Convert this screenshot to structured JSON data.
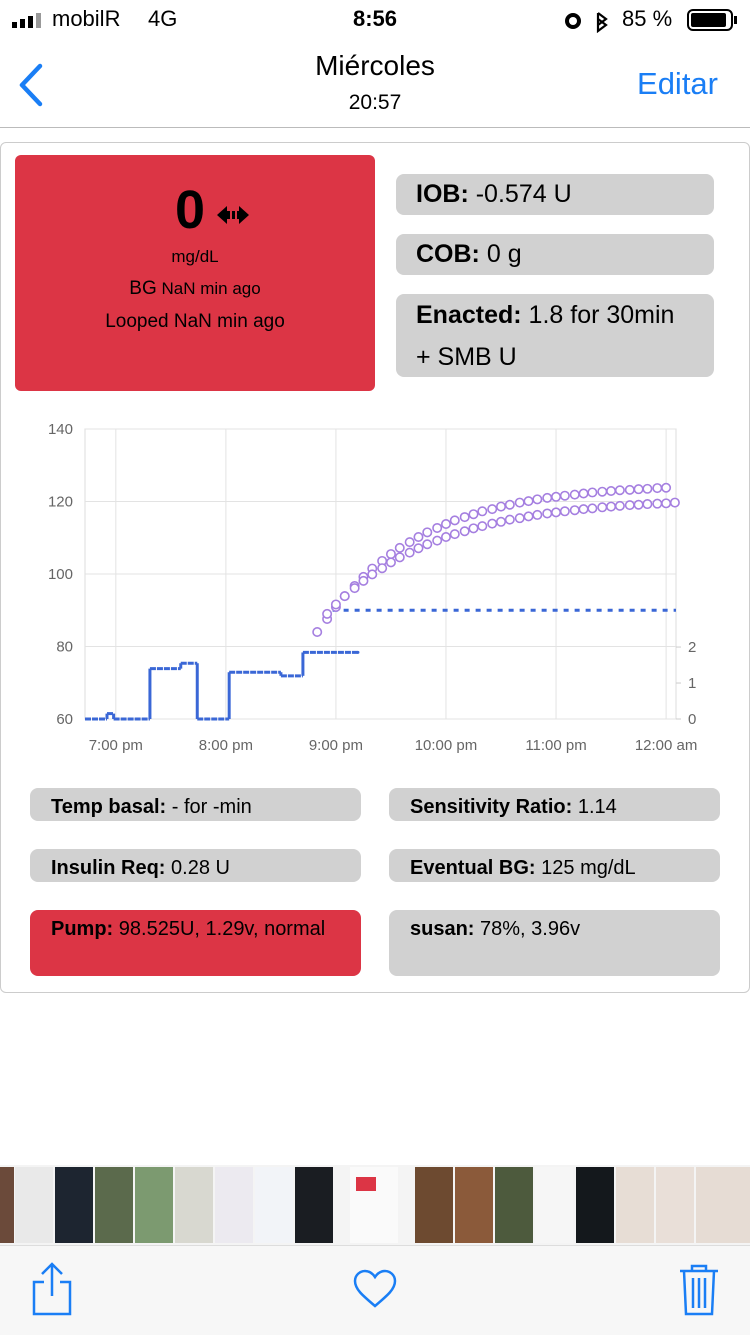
{
  "status_bar": {
    "carrier": "mobilR",
    "network": "4G",
    "time": "8:56",
    "battery": "85 %"
  },
  "nav": {
    "title": "Miércoles",
    "subtitle": "20:57",
    "action": "Editar"
  },
  "summary": {
    "bg": "0",
    "unit": "mg/dL",
    "bg_label": "BG",
    "bg_age": "NaN min ago",
    "looped": "Looped NaN min ago"
  },
  "pills": [
    {
      "label": "IOB:",
      "value": "-0.574 U"
    },
    {
      "label": "COB:",
      "value": "0 g"
    },
    {
      "label": "Enacted:",
      "value": "1.8 for 30min + SMB U"
    }
  ],
  "chart_data": {
    "type": "line",
    "xlim": [
      18.72,
      24.09
    ],
    "xticks": [
      {
        "value": 19,
        "label": "7:00 pm"
      },
      {
        "value": 20,
        "label": "8:00 pm"
      },
      {
        "value": 21,
        "label": "9:00 pm"
      },
      {
        "value": 22,
        "label": "10:00 pm"
      },
      {
        "value": 23,
        "label": "11:00 pm"
      },
      {
        "value": 24,
        "label": "12:00 am"
      }
    ],
    "ylim": [
      60,
      140
    ],
    "yticks": [
      60,
      80,
      100,
      120,
      140
    ],
    "y2lim": [
      0,
      8.06
    ],
    "y2ticks": [
      0,
      1,
      2
    ],
    "grid": true,
    "series": [
      {
        "style": "step",
        "axis": "y2",
        "color": "#3a67d6",
        "x": [
          18.72,
          18.92,
          18.98,
          19.31,
          19.59,
          19.74,
          20.03,
          20.5,
          20.7,
          21.2
        ],
        "values": [
          0,
          0.15,
          0,
          1.4,
          1.55,
          0,
          1.3,
          1.2,
          1.85,
          1.85
        ]
      },
      {
        "style": "dashed",
        "color": "#3a67d6",
        "x": [
          20.97,
          24.09
        ],
        "values": [
          90,
          90
        ]
      },
      {
        "style": "circles",
        "color": "#a57fe0",
        "x": [
          20.83,
          20.92,
          21.0,
          21.08,
          21.17,
          21.25,
          21.33,
          21.42,
          21.5,
          21.58,
          21.67,
          21.75,
          21.83,
          21.92,
          22.0,
          22.08,
          22.17,
          22.25,
          22.33,
          22.42,
          22.5,
          22.58,
          22.67,
          22.75,
          22.83,
          22.92,
          23.0,
          23.08,
          23.17,
          23.25,
          23.33,
          23.42,
          23.5,
          23.58,
          23.67,
          23.75,
          23.83,
          23.92,
          24.0
        ],
        "values": [
          84,
          87.6,
          90.9,
          93.9,
          96.7,
          99.2,
          101.5,
          103.6,
          105.5,
          107.2,
          108.8,
          110.2,
          111.5,
          112.7,
          113.8,
          114.8,
          115.7,
          116.5,
          117.3,
          117.9,
          118.6,
          119.1,
          119.7,
          120.1,
          120.6,
          121,
          121.3,
          121.6,
          121.9,
          122.2,
          122.5,
          122.7,
          122.9,
          123.1,
          123.2,
          123.4,
          123.5,
          123.7,
          123.8
        ]
      },
      {
        "style": "circles",
        "color": "#a57fe0",
        "x": [
          20.92,
          21.0,
          21.08,
          21.17,
          21.25,
          21.33,
          21.42,
          21.5,
          21.58,
          21.67,
          21.75,
          21.83,
          21.92,
          22.0,
          22.08,
          22.17,
          22.25,
          22.33,
          22.42,
          22.5,
          22.58,
          22.67,
          22.75,
          22.83,
          22.92,
          23.0,
          23.08,
          23.17,
          23.25,
          23.33,
          23.42,
          23.5,
          23.58,
          23.67,
          23.75,
          23.83,
          23.92,
          24.0,
          24.08
        ],
        "values": [
          89,
          91.6,
          93.9,
          96.1,
          98.1,
          99.9,
          101.6,
          103.2,
          104.6,
          105.9,
          107.1,
          108.2,
          109.2,
          110.2,
          111,
          111.8,
          112.6,
          113.2,
          113.9,
          114.4,
          115,
          115.4,
          115.9,
          116.3,
          116.7,
          117,
          117.3,
          117.6,
          117.9,
          118.1,
          118.4,
          118.6,
          118.8,
          119,
          119.1,
          119.3,
          119.4,
          119.5,
          119.7
        ]
      }
    ]
  },
  "stats": [
    {
      "label": "Temp basal:",
      "value": "- for -min"
    },
    {
      "label": "Sensitivity Ratio:",
      "value": "1.14"
    },
    {
      "label": "Insulin Req:",
      "value": "0.28 U"
    },
    {
      "label": "Eventual BG:",
      "value": "125 mg/dL"
    },
    {
      "label": "Pump:",
      "value": "98.525U, 1.29v, normal"
    },
    {
      "label": "susan:",
      "value": "78%, 3.96v"
    }
  ]
}
